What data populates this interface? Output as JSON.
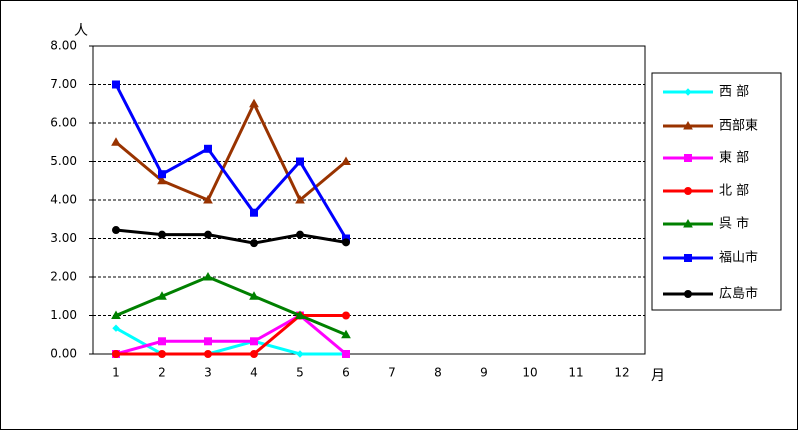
{
  "chart_data": {
    "type": "line",
    "y_label": "人",
    "x_label": "月",
    "categories": [
      "1",
      "2",
      "3",
      "4",
      "5",
      "6",
      "7",
      "8",
      "9",
      "10",
      "11",
      "12"
    ],
    "ylim": [
      0,
      8
    ],
    "yticks": [
      {
        "value": 0,
        "label": "0.00"
      },
      {
        "value": 1,
        "label": "1.00"
      },
      {
        "value": 2,
        "label": "2.00"
      },
      {
        "value": 3,
        "label": "3.00"
      },
      {
        "value": 4,
        "label": "4.00"
      },
      {
        "value": 5,
        "label": "5.00"
      },
      {
        "value": 6,
        "label": "6.00"
      },
      {
        "value": 7,
        "label": "7.00"
      },
      {
        "value": 8,
        "label": "8.00"
      }
    ],
    "grid": true,
    "legend": "right",
    "series": [
      {
        "name": "西 部",
        "color": "#00ffff",
        "marker": "diamond",
        "values": [
          0.67,
          0,
          0,
          0.33,
          0,
          0,
          null,
          null,
          null,
          null,
          null,
          null
        ]
      },
      {
        "name": "西部東",
        "color": "#993300",
        "marker": "triangle",
        "values": [
          5.5,
          4.5,
          4.0,
          6.5,
          4.0,
          5.0,
          null,
          null,
          null,
          null,
          null,
          null
        ]
      },
      {
        "name": "東 部",
        "color": "#ff00ff",
        "marker": "square",
        "values": [
          0,
          0.33,
          0.33,
          0.33,
          1.0,
          0,
          null,
          null,
          null,
          null,
          null,
          null
        ]
      },
      {
        "name": "北 部",
        "color": "#ff0000",
        "marker": "circle",
        "values": [
          0,
          0,
          0,
          0,
          1,
          1,
          null,
          null,
          null,
          null,
          null,
          null
        ]
      },
      {
        "name": "呉 市",
        "color": "#008000",
        "marker": "triangle",
        "values": [
          1,
          1.5,
          2,
          1.5,
          1,
          0.5,
          null,
          null,
          null,
          null,
          null,
          null
        ]
      },
      {
        "name": "福山市",
        "color": "#0000ff",
        "marker": "square",
        "values": [
          7,
          4.67,
          5.33,
          3.67,
          5,
          3,
          null,
          null,
          null,
          null,
          null,
          null
        ]
      },
      {
        "name": "広島市",
        "color": "#000000",
        "marker": "circle",
        "values": [
          3.22,
          3.1,
          3.1,
          2.88,
          3.1,
          2.9,
          null,
          null,
          null,
          null,
          null,
          null
        ]
      }
    ]
  }
}
